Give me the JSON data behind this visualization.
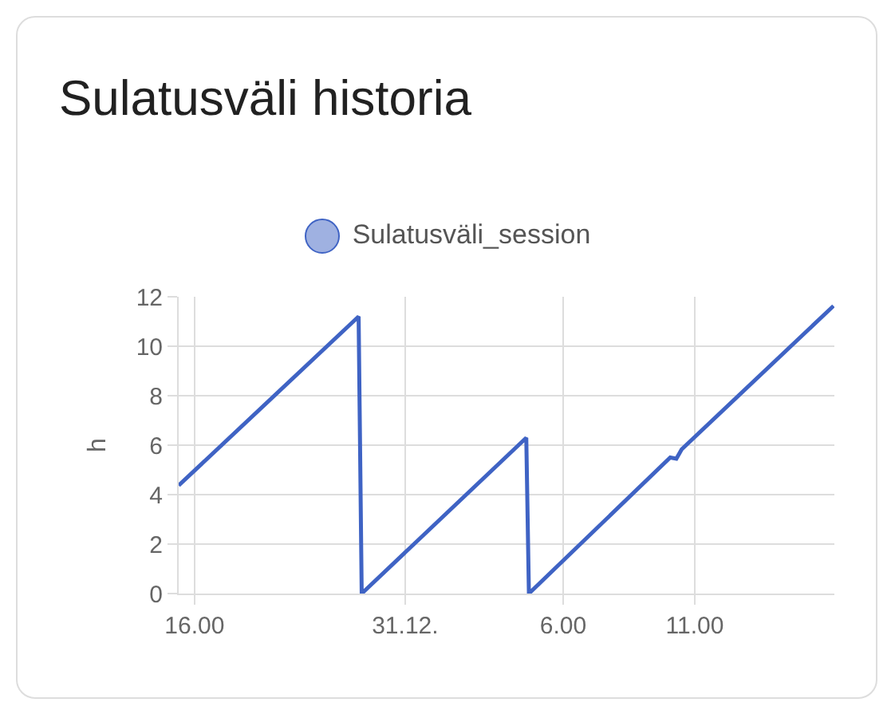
{
  "chart_data": {
    "type": "line",
    "title": "Sulatusväli historia",
    "ylabel": "h",
    "x": [
      "--12-30T15:24",
      "--12-30T22:14",
      "--12-30T22:21",
      "--12-31T04:36",
      "--12-31T04:42",
      "--12-31T10:04",
      "--12-31T10:18",
      "--12-31T10:30",
      "--12-31T16:16"
    ],
    "series": [
      {
        "name": "Sulatusväli_session",
        "color": "#3f63c4",
        "values": [
          4.37,
          11.2,
          0,
          6.3,
          0,
          5.5,
          5.45,
          5.83,
          11.63
        ]
      }
    ],
    "xlim": [
      "--12-30T15:24",
      "--12-31T16:18"
    ],
    "xticks": [
      {
        "value": "--12-30T16:00",
        "label": "16.00"
      },
      {
        "value": "--12-31T00:00",
        "label": "31.12."
      },
      {
        "value": "--12-31T06:00",
        "label": "6.00"
      },
      {
        "value": "--12-31T11:00",
        "label": "11.00"
      }
    ],
    "ylim": [
      0,
      12
    ],
    "yticks": [
      0,
      2,
      4,
      6,
      8,
      10,
      12
    ],
    "grid": true,
    "legend": "top",
    "marker": "none",
    "line_style": "solid"
  }
}
